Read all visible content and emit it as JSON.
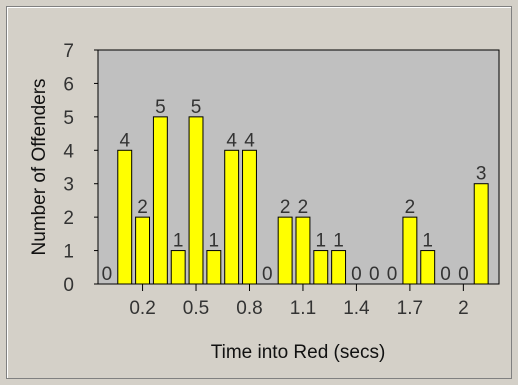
{
  "chart_data": {
    "type": "bar",
    "xlabel": "Time into Red (secs)",
    "ylabel": "Number of Offenders",
    "ylim": [
      0,
      7
    ],
    "yticks": [
      "0",
      "1",
      "2",
      "3",
      "4",
      "5",
      "6",
      "7"
    ],
    "xticks": [
      {
        "x": 0.2,
        "label": "0.2"
      },
      {
        "x": 0.5,
        "label": "0.5"
      },
      {
        "x": 0.8,
        "label": "0.8"
      },
      {
        "x": 1.1,
        "label": "1.1"
      },
      {
        "x": 1.4,
        "label": "1.4"
      },
      {
        "x": 1.7,
        "label": "1.7"
      },
      {
        "x": 2.0,
        "label": "2"
      }
    ],
    "xlim": [
      -0.05,
      2.2
    ],
    "bin_width": 0.1,
    "x": [
      0.0,
      0.1,
      0.2,
      0.3,
      0.4,
      0.5,
      0.6,
      0.7,
      0.8,
      0.9,
      1.0,
      1.1,
      1.2,
      1.3,
      1.4,
      1.5,
      1.6,
      1.7,
      1.8,
      1.9,
      2.0,
      2.1
    ],
    "values": [
      0,
      4,
      2,
      5,
      1,
      5,
      1,
      4,
      4,
      0,
      2,
      2,
      1,
      1,
      0,
      0,
      0,
      2,
      1,
      0,
      0,
      3
    ],
    "grid": false,
    "colors": {
      "bar_fill": "#ffff00",
      "bar_stroke": "#000000",
      "plot_bg": "#c0c0c0",
      "frame_bg": "#d4d0c8"
    }
  }
}
